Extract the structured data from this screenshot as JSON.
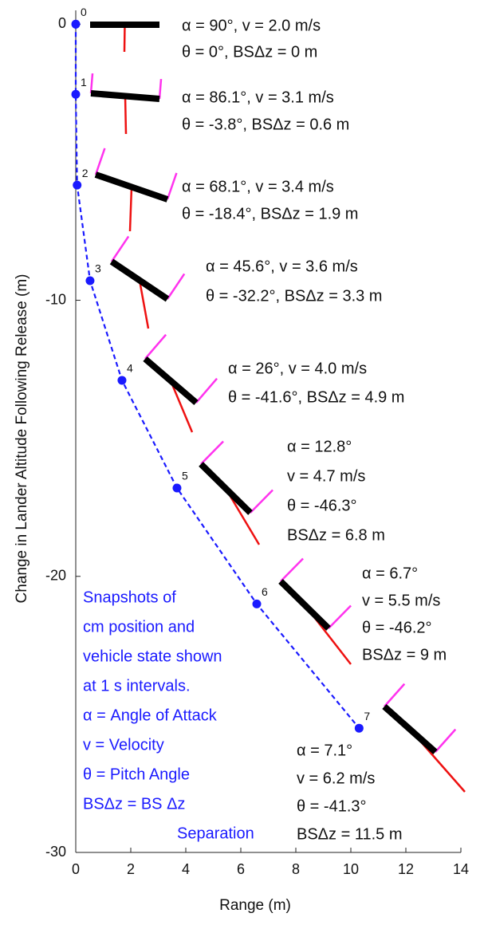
{
  "chart_data": {
    "type": "line",
    "xlabel": "Range (m)",
    "ylabel": "Change in Lander Altitude Following Release (m)",
    "xlim": [
      0,
      14
    ],
    "xticks": [
      0,
      2,
      4,
      6,
      8,
      10,
      12,
      14
    ],
    "ylim": [
      -30,
      0.5
    ],
    "yticks": [
      -30,
      -20,
      -10,
      0
    ],
    "x": [
      0,
      0,
      0.05,
      0.52,
      1.68,
      3.68,
      6.58,
      10.3
    ],
    "series": [
      {
        "color": "#1a1aff",
        "values": [
          0,
          -2.54,
          -5.83,
          -9.29,
          -12.9,
          -16.8,
          -21.0,
          -25.5
        ]
      }
    ],
    "point_labels": [
      "0",
      "1",
      "2",
      "3",
      "4",
      "5",
      "6",
      "7"
    ],
    "annotations": [
      [
        "α = 90°, v = 2.0 m/s",
        "θ = 0°, BSΔz = 0 m"
      ],
      [
        "α = 86.1°, v = 3.1 m/s",
        "θ = -3.8°, BSΔz = 0.6 m"
      ],
      [
        "α = 68.1°, v = 3.4 m/s",
        "θ = -18.4°, BSΔz = 1.9 m"
      ],
      [
        "α = 45.6°, v = 3.6 m/s",
        "θ = -32.2°, BSΔz = 3.3 m"
      ],
      [
        "α = 26°, v = 4.0 m/s",
        "θ = -41.6°, BSΔz = 4.9 m"
      ],
      [
        "α = 12.8°",
        "v = 4.7 m/s",
        "θ = -46.3°",
        "BSΔz = 6.8 m"
      ],
      [
        "α = 6.7°",
        "v = 5.5 m/s",
        "θ = -46.2°",
        "BSΔz = 9 m"
      ],
      [
        "α = 7.1°",
        "v = 6.2 m/s",
        "θ = -41.3°",
        "BSΔz = 11.5 m"
      ]
    ],
    "note": [
      "Snapshots of",
      "cm position and",
      "vehicle state shown",
      "at 1 s intervals.",
      "α = Angle of Attack",
      "v = Velocity",
      "θ = Pitch Angle",
      "BSΔz = BS  Δz",
      "Separation"
    ]
  }
}
